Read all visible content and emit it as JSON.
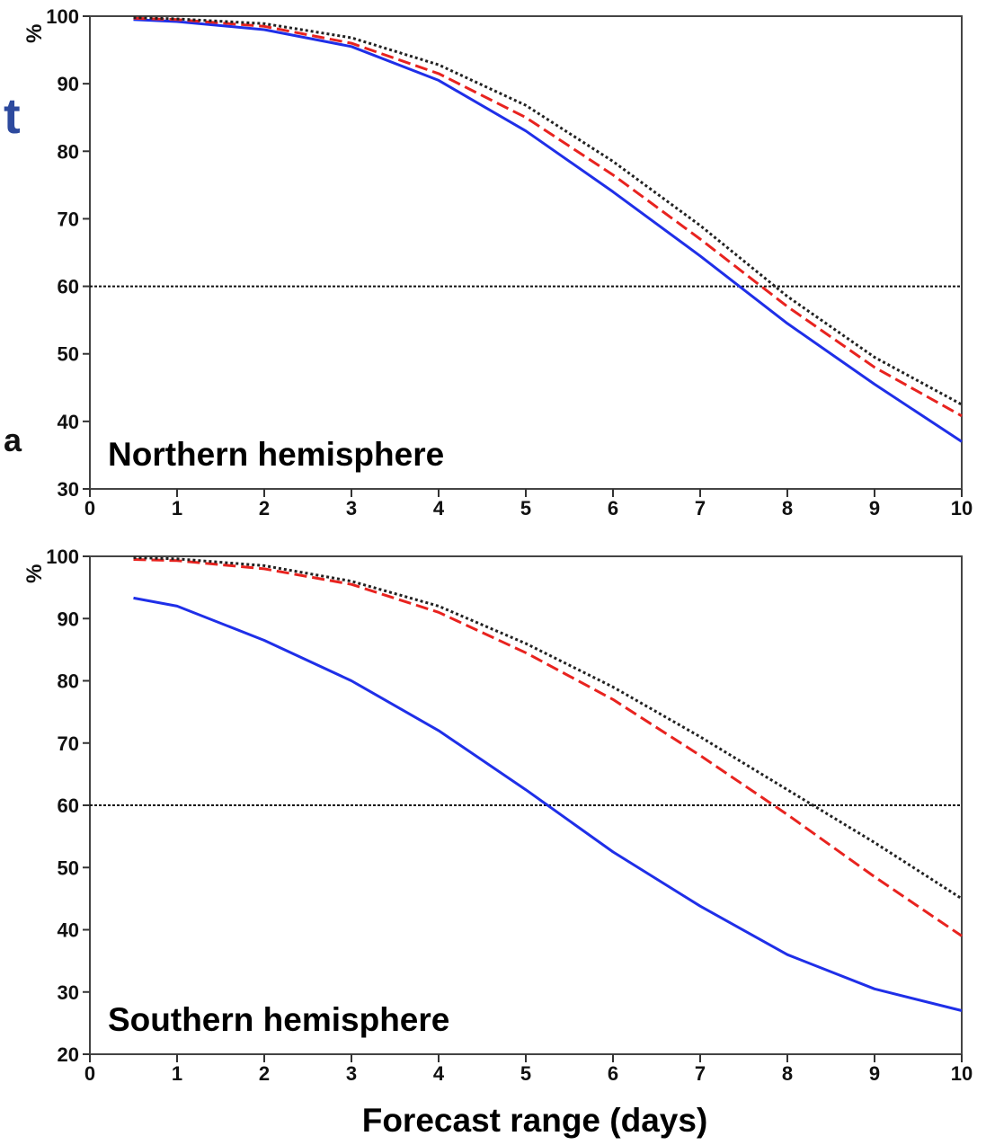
{
  "edge_fragments": [
    {
      "text": "t",
      "color": "#2d4a9e"
    },
    {
      "text": "a",
      "color": "#111111"
    }
  ],
  "chart_data": [
    {
      "type": "line",
      "title": "Northern hemisphere",
      "xlabel": "",
      "ylabel": "%",
      "xlim": [
        0,
        10
      ],
      "ylim": [
        30,
        100
      ],
      "xticks": [
        0,
        1,
        2,
        3,
        4,
        5,
        6,
        7,
        8,
        9,
        10
      ],
      "yticks": [
        30,
        40,
        50,
        60,
        70,
        80,
        90,
        100
      ],
      "reference_line": 60,
      "grid": false,
      "x": [
        0.5,
        1,
        2,
        3,
        4,
        5,
        6,
        7,
        8,
        9,
        10
      ],
      "series": [
        {
          "values": [
            99.5,
            99.2,
            98.0,
            95.5,
            90.5,
            83.0,
            74.0,
            64.5,
            54.5,
            45.5,
            37.0
          ],
          "color": "#1f2fe8",
          "dash": "solid"
        },
        {
          "values": [
            99.7,
            99.5,
            98.5,
            96.0,
            91.5,
            85.0,
            76.5,
            67.0,
            57.0,
            48.0,
            40.8
          ],
          "color": "#e8231f",
          "dash": "dashed"
        },
        {
          "values": [
            99.8,
            99.6,
            98.9,
            96.8,
            92.8,
            86.8,
            78.5,
            69.0,
            58.5,
            49.5,
            42.5
          ],
          "color": "#222222",
          "dash": "dotted"
        }
      ]
    },
    {
      "type": "line",
      "title": "Southern hemisphere",
      "xlabel": "Forecast range (days)",
      "ylabel": "%",
      "xlim": [
        0,
        10
      ],
      "ylim": [
        20,
        100
      ],
      "xticks": [
        0,
        1,
        2,
        3,
        4,
        5,
        6,
        7,
        8,
        9,
        10
      ],
      "yticks": [
        20,
        30,
        40,
        50,
        60,
        70,
        80,
        90,
        100
      ],
      "reference_line": 60,
      "grid": false,
      "x": [
        0.5,
        1,
        2,
        3,
        4,
        5,
        6,
        7,
        8,
        9,
        10
      ],
      "series": [
        {
          "values": [
            93.3,
            92.0,
            86.5,
            80.0,
            72.0,
            62.5,
            52.5,
            43.8,
            36.0,
            30.5,
            27.0
          ],
          "color": "#1f2fe8",
          "dash": "solid"
        },
        {
          "values": [
            99.5,
            99.3,
            98.0,
            95.5,
            91.0,
            84.5,
            77.0,
            68.0,
            58.5,
            48.5,
            39.0
          ],
          "color": "#e8231f",
          "dash": "dashed"
        },
        {
          "values": [
            99.8,
            99.6,
            98.5,
            96.0,
            92.0,
            86.0,
            79.0,
            71.0,
            62.5,
            54.0,
            45.0
          ],
          "color": "#222222",
          "dash": "dotted"
        }
      ]
    }
  ]
}
